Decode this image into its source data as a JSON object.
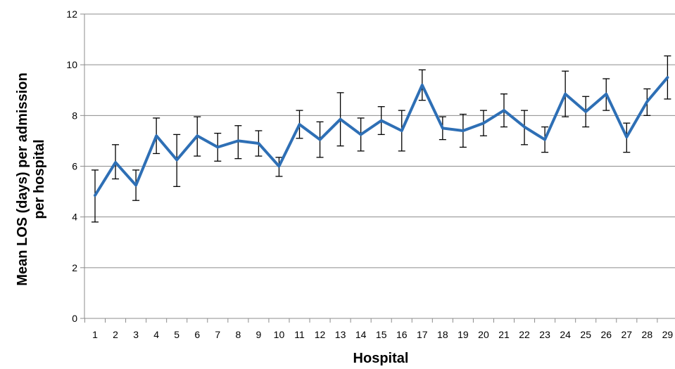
{
  "chart_data": {
    "type": "line",
    "title": "",
    "xlabel": "Hospital",
    "ylabel_line1": "Mean LOS (days) per admission",
    "ylabel_line2": "per hospital",
    "ylim": [
      0,
      12
    ],
    "yticks": [
      0,
      2,
      4,
      6,
      8,
      10,
      12
    ],
    "grid": "horizontal",
    "legend": "none",
    "line_color": "#2e6fb5",
    "errorbar_color": "#000000",
    "grid_color": "#8c8c8c",
    "categories": [
      "1",
      "2",
      "3",
      "4",
      "5",
      "6",
      "7",
      "8",
      "9",
      "10",
      "11",
      "12",
      "13",
      "14",
      "15",
      "16",
      "17",
      "18",
      "19",
      "20",
      "21",
      "22",
      "23",
      "24",
      "25",
      "26",
      "27",
      "28",
      "29"
    ],
    "series": [
      {
        "values": [
          4.85,
          6.15,
          5.25,
          7.2,
          6.25,
          7.2,
          6.75,
          7.0,
          6.9,
          6.0,
          7.65,
          7.05,
          7.85,
          7.25,
          7.8,
          7.4,
          9.2,
          7.5,
          7.4,
          7.7,
          8.2,
          7.55,
          7.05,
          8.85,
          8.15,
          8.85,
          7.15,
          8.55,
          9.5
        ],
        "lower": [
          3.8,
          5.5,
          4.65,
          6.5,
          5.2,
          6.4,
          6.2,
          6.3,
          6.4,
          5.6,
          7.1,
          6.35,
          6.8,
          6.6,
          7.25,
          6.6,
          8.6,
          7.05,
          6.75,
          7.2,
          7.55,
          6.85,
          6.55,
          7.95,
          7.55,
          8.2,
          6.55,
          8.0,
          8.65
        ],
        "upper": [
          5.85,
          6.85,
          5.85,
          7.9,
          7.25,
          7.95,
          7.3,
          7.6,
          7.4,
          6.35,
          8.2,
          7.75,
          8.9,
          7.9,
          8.35,
          8.2,
          9.8,
          7.95,
          8.05,
          8.2,
          8.85,
          8.2,
          7.55,
          9.75,
          8.75,
          9.45,
          7.7,
          9.05,
          10.35
        ]
      }
    ]
  }
}
